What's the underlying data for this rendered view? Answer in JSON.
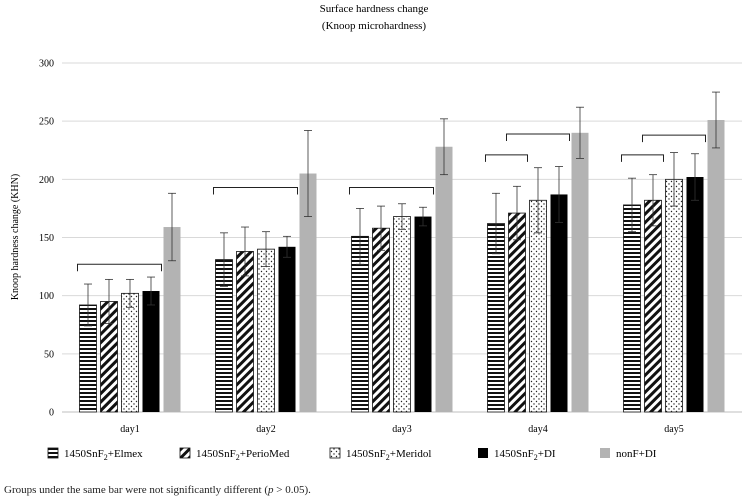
{
  "chart_data": {
    "type": "bar",
    "title": "Surface hardness change",
    "subtitle": "(Knoop microhardness)",
    "xlabel": "",
    "ylabel": "Knoop hardness change (KHN)",
    "ylim": [
      0,
      300
    ],
    "yticks": [
      0,
      50,
      100,
      150,
      200,
      250,
      300
    ],
    "grid": true,
    "legend_position": "bottom",
    "categories": [
      "day1",
      "day2",
      "day3",
      "day4",
      "day5"
    ],
    "series": [
      {
        "name": "1450SnF2+Elmex",
        "legend_base": "1450SnF",
        "legend_sub": "2",
        "legend_suffix": "+Elmex",
        "pattern": "horizontal-lines",
        "values": [
          92,
          131,
          151,
          162,
          178
        ],
        "errors": [
          18,
          23,
          24,
          26,
          23
        ]
      },
      {
        "name": "1450SnF2+PerioMed",
        "legend_base": "1450SnF",
        "legend_sub": "2",
        "legend_suffix": "+PerioMed",
        "pattern": "diagonal-lines",
        "values": [
          95,
          138,
          158,
          171,
          182
        ],
        "errors": [
          19,
          21,
          19,
          23,
          22
        ]
      },
      {
        "name": "1450SnF2+Meridol",
        "legend_base": "1450SnF",
        "legend_sub": "2",
        "legend_suffix": "+Meridol",
        "pattern": "dots",
        "values": [
          102,
          140,
          168,
          182,
          200
        ],
        "errors": [
          12,
          15,
          11,
          28,
          23
        ]
      },
      {
        "name": "1450SnF2+DI",
        "legend_base": "1450SnF",
        "legend_sub": "2",
        "legend_suffix": "+DI",
        "pattern": "solid-black",
        "values": [
          104,
          142,
          168,
          187,
          202
        ],
        "errors": [
          12,
          9,
          8,
          24,
          20
        ]
      },
      {
        "name": "nonF+DI",
        "legend_base": "nonF+DI",
        "legend_sub": "",
        "legend_suffix": "",
        "pattern": "solid-gray",
        "values": [
          159,
          205,
          228,
          240,
          251
        ],
        "errors": [
          29,
          37,
          24,
          22,
          24
        ]
      }
    ],
    "brackets": [
      {
        "category": "day1",
        "from_series": 0,
        "to_series": 3,
        "level": 127
      },
      {
        "category": "day2",
        "from_series": 0,
        "to_series": 3,
        "level": 193
      },
      {
        "category": "day3",
        "from_series": 0,
        "to_series": 3,
        "level": 193
      },
      {
        "category": "day4",
        "from_series": 0,
        "to_series": 1,
        "level": 221
      },
      {
        "category": "day4",
        "from_series": 1,
        "to_series": 3,
        "level": 239
      },
      {
        "category": "day5",
        "from_series": 0,
        "to_series": 1,
        "level": 221
      },
      {
        "category": "day5",
        "from_series": 1,
        "to_series": 3,
        "level": 238
      }
    ]
  },
  "footnote": {
    "before": "Groups under the same bar were not significantly different (",
    "italic": "p",
    "after": " > 0.05)."
  }
}
